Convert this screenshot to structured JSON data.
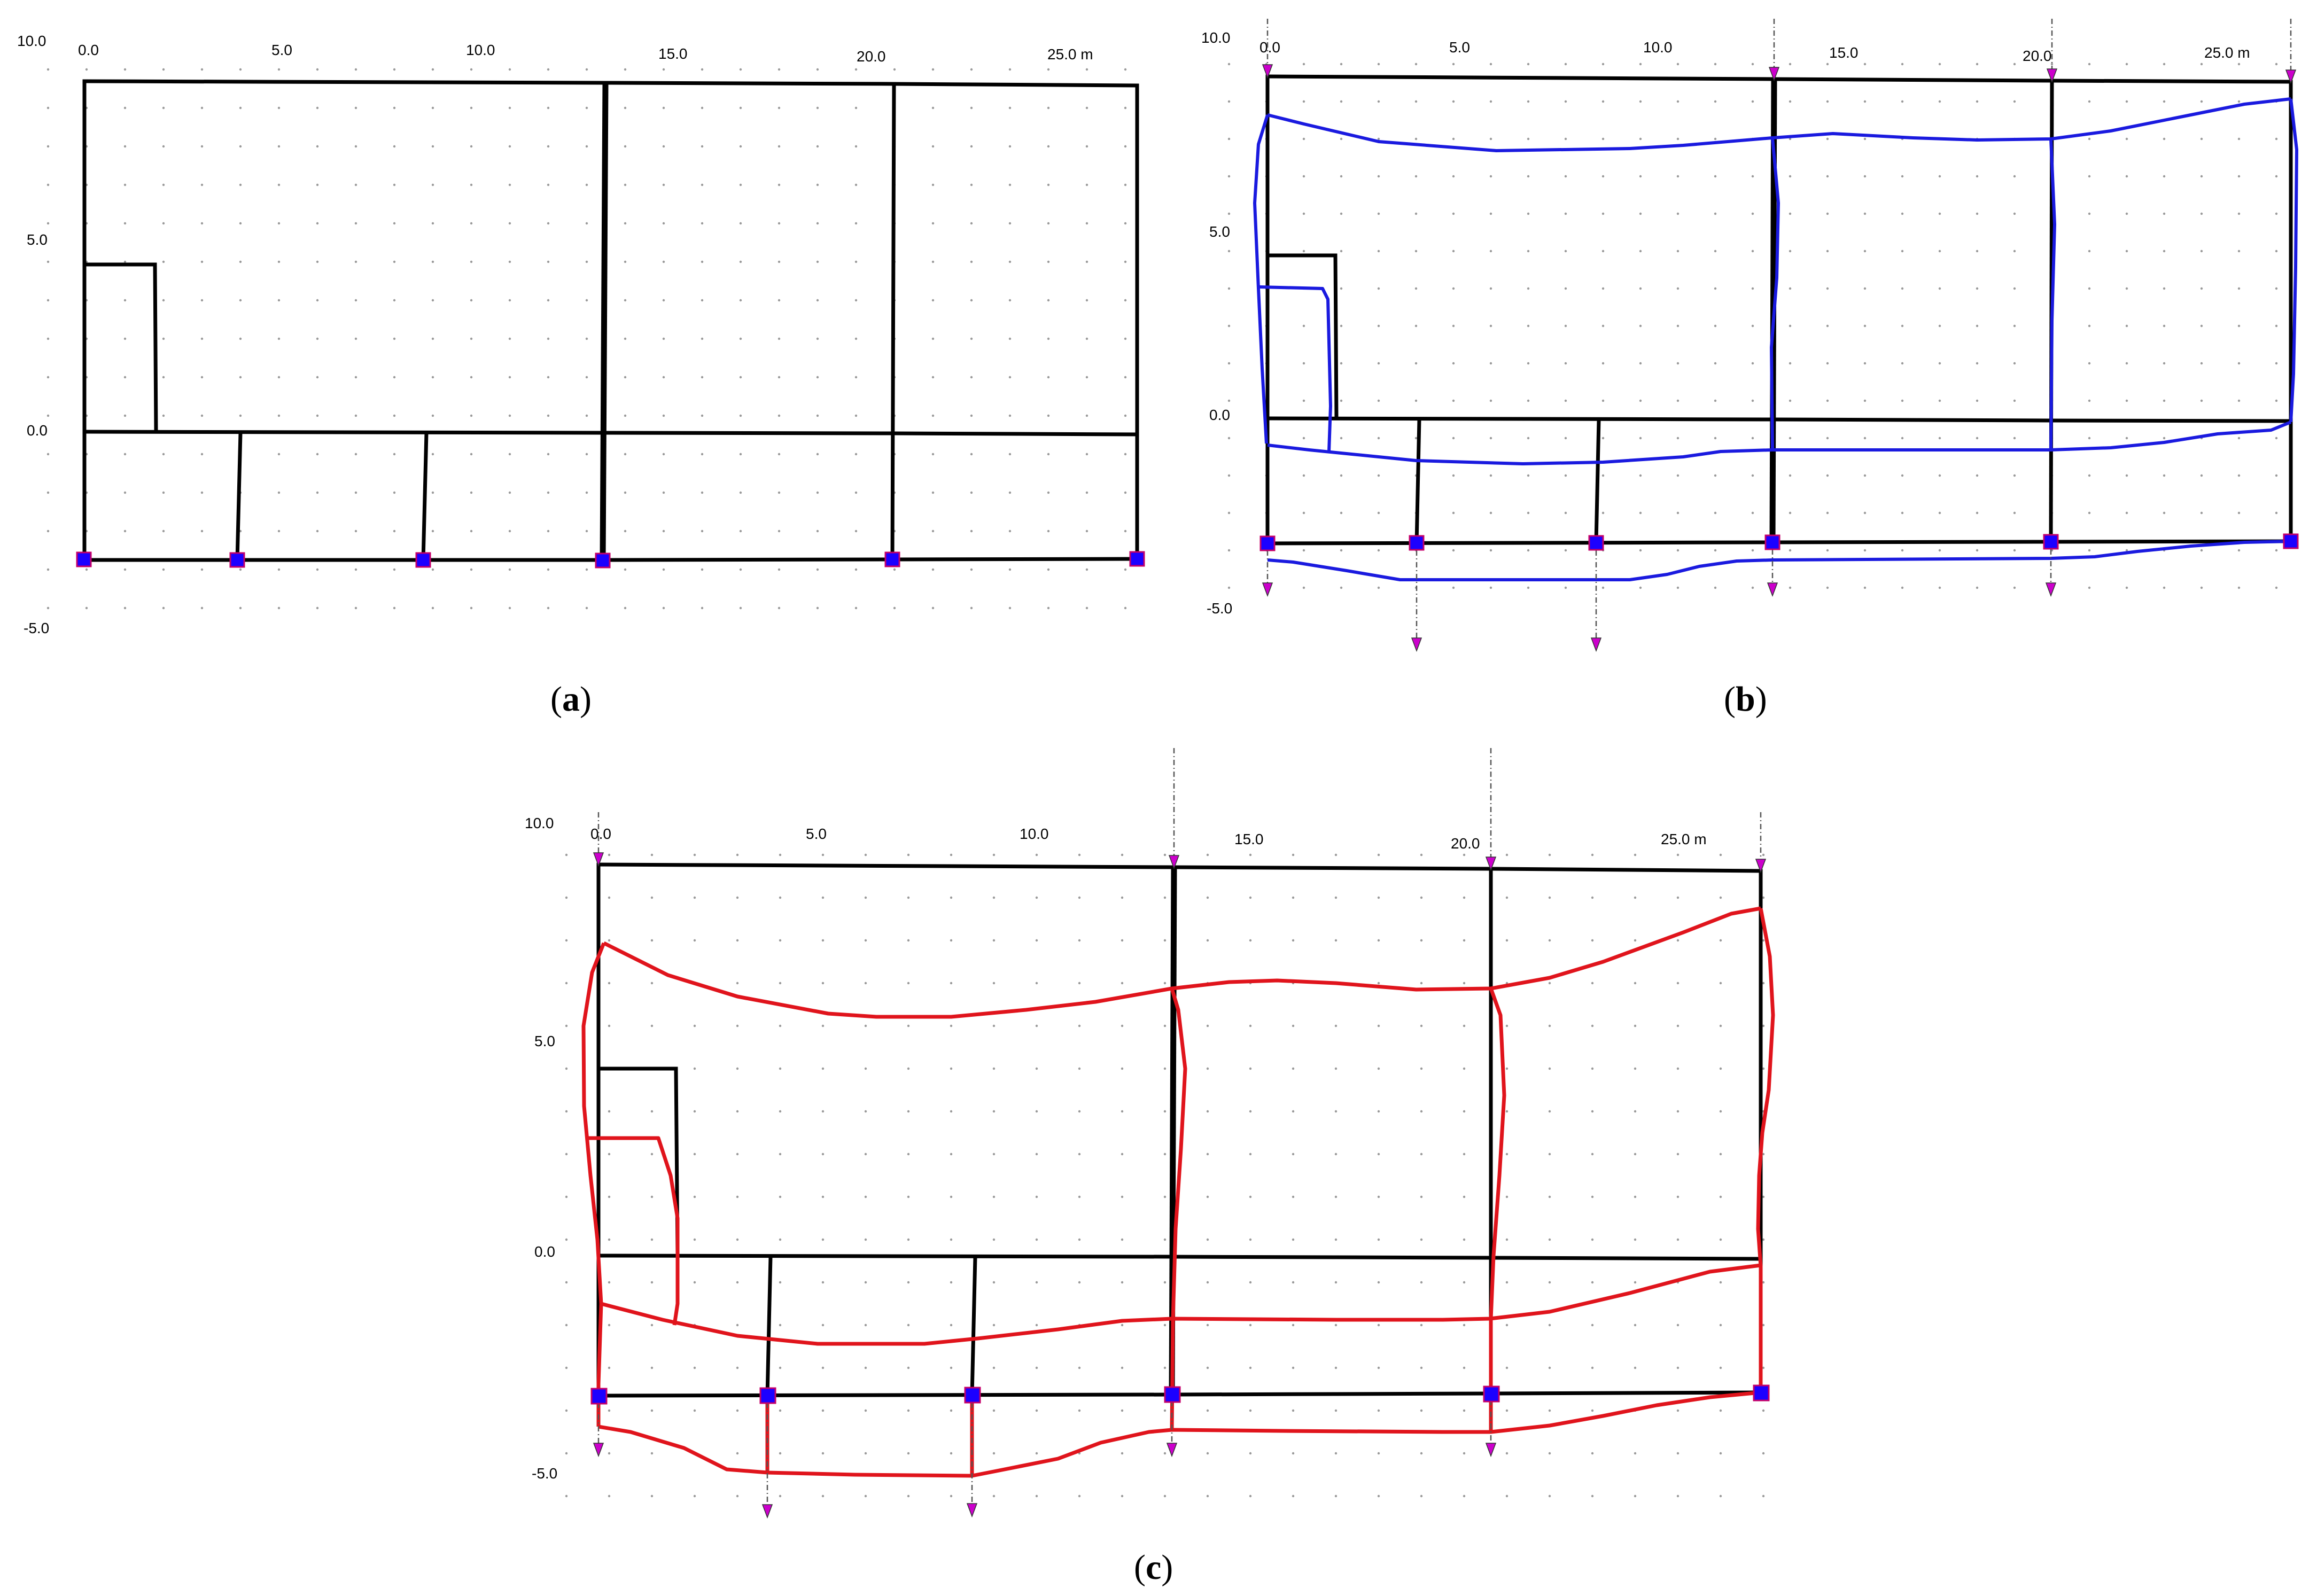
{
  "panels": [
    {
      "id": "a",
      "caption_open": "(",
      "caption_letter": "a",
      "caption_close": ")",
      "x_ticks": [
        "0.0",
        "5.0",
        "10.0",
        "15.0",
        "20.0",
        "25.0 m"
      ],
      "y_ticks": [
        "10.0",
        "5.0",
        "0.0",
        "-5.0"
      ],
      "deformed_color": null
    },
    {
      "id": "b",
      "caption_open": "(",
      "caption_letter": "b",
      "caption_close": ")",
      "x_ticks": [
        "0.0",
        "5.0",
        "10.0",
        "15.0",
        "20.0",
        "25.0 m"
      ],
      "y_ticks": [
        "10.0",
        "5.0",
        "0.0",
        "-5.0"
      ],
      "deformed_color": "#1a1adf"
    },
    {
      "id": "c",
      "caption_open": "(",
      "caption_letter": "c",
      "caption_close": ")",
      "x_ticks": [
        "0.0",
        "5.0",
        "10.0",
        "15.0",
        "20.0",
        "25.0 m"
      ],
      "y_ticks": [
        "10.0",
        "5.0",
        "0.0",
        "-5.0"
      ],
      "deformed_color": "#e0141c"
    }
  ],
  "colors": {
    "frame": "#000000",
    "support_fill": "#1c00ff",
    "support_edge": "#c4006a",
    "load_arrow": "#cc00cc",
    "grid_dots": "#9a9a9a"
  }
}
